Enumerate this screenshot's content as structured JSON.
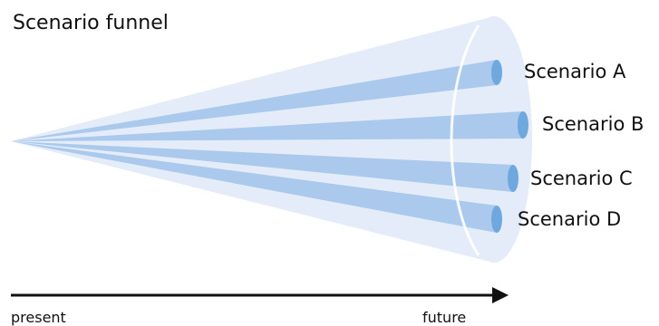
{
  "title": "Scenario funnel",
  "scenarios": [
    {
      "label": "Scenario A"
    },
    {
      "label": "Scenario B"
    },
    {
      "label": "Scenario C"
    },
    {
      "label": "Scenario D"
    }
  ],
  "timeline": {
    "start_label": "present",
    "end_label": "future"
  },
  "colors": {
    "funnel_fill": "#e3ecf8",
    "beam_fill": "#aac9ec",
    "tube_end_fill": "#6fa8df",
    "ring_stroke": "#ffffff",
    "arrow": "#111111"
  }
}
